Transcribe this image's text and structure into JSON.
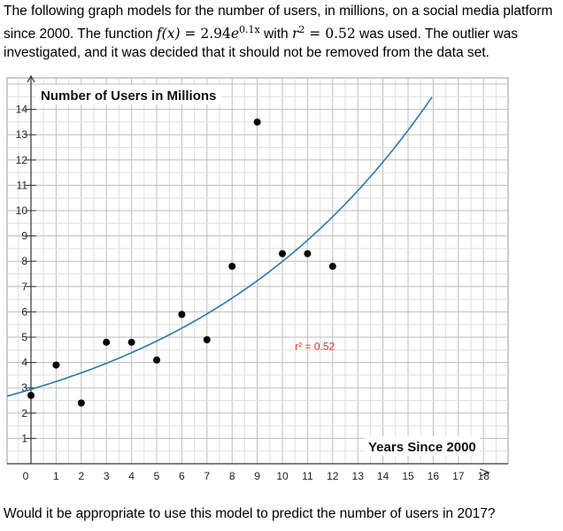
{
  "intro": {
    "line1_a": "The following graph models for the number of users, in millions, on a social media platform",
    "line2_a": "since 2000. The function ",
    "fx": "f(x)",
    "equals": " = ",
    "coef": "2.94",
    "base": "e",
    "exponent": "0.1x",
    "with": " with ",
    "r": "r",
    "r_exp": "2",
    "r_eq": " = ",
    "r_val": "0.52",
    "line2_b": " was used. The outlier was",
    "line3": "investigated, and it was decided that it should not be removed from the data set."
  },
  "question": "Would it be appropriate to use this model to predict the number of users in 2017?",
  "chart_data": {
    "type": "scatter",
    "title": "Number of Users in Millions",
    "xlabel": "Years Since 2000",
    "ylabel": "",
    "xlim": [
      0,
      18
    ],
    "ylim": [
      0,
      14
    ],
    "x_ticks": [
      "0",
      "1",
      "2",
      "3",
      "4",
      "5",
      "6",
      "7",
      "8",
      "9",
      "10",
      "11",
      "12",
      "13",
      "14",
      "15",
      "16",
      "17",
      "18"
    ],
    "y_ticks": [
      "1",
      "2",
      "3",
      "4",
      "5",
      "6",
      "7",
      "8",
      "9",
      "10",
      "11",
      "12",
      "13",
      "14"
    ],
    "grid": true,
    "points": [
      {
        "x": 0,
        "y": 2.7
      },
      {
        "x": 1,
        "y": 3.9
      },
      {
        "x": 2,
        "y": 2.4
      },
      {
        "x": 3,
        "y": 4.8
      },
      {
        "x": 4,
        "y": 4.8
      },
      {
        "x": 5,
        "y": 4.1
      },
      {
        "x": 6,
        "y": 5.9
      },
      {
        "x": 7,
        "y": 4.9
      },
      {
        "x": 8,
        "y": 7.8
      },
      {
        "x": 9,
        "y": 13.5
      },
      {
        "x": 10,
        "y": 8.3
      },
      {
        "x": 11,
        "y": 8.3
      },
      {
        "x": 12,
        "y": 7.8
      }
    ],
    "model": {
      "a": 2.94,
      "b": 0.1
    },
    "annotation": {
      "text": "r² = 0.52",
      "x": 10.5,
      "y": 4.5
    },
    "colors": {
      "curve": "#2c78a8",
      "points": "#000000",
      "grid": "#c8c8c8",
      "annotation": "#d23a2a"
    }
  }
}
